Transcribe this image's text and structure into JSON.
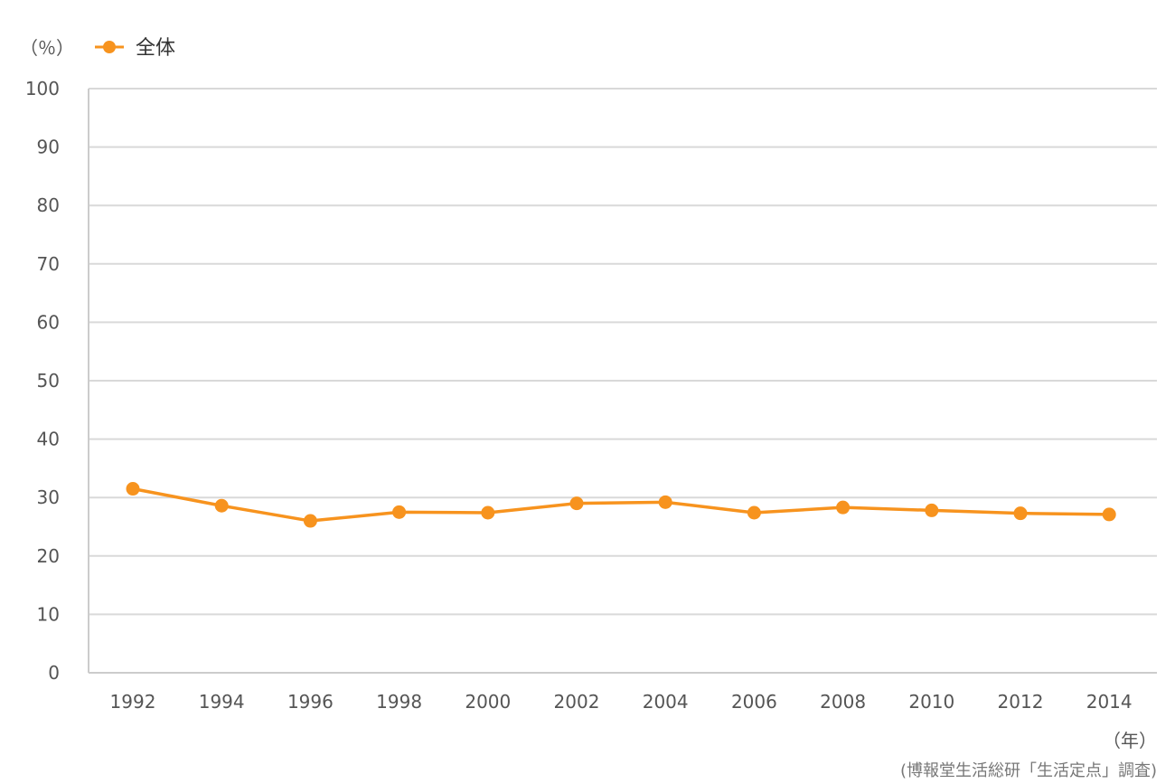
{
  "chart_data": {
    "type": "line",
    "y_unit": "（％）",
    "x_unit": "（年）",
    "source": "(博報堂生活総研「生活定点」調査)",
    "x": [
      "1992",
      "1994",
      "1996",
      "1998",
      "2000",
      "2002",
      "2004",
      "2006",
      "2008",
      "2010",
      "2012",
      "2014"
    ],
    "series": [
      {
        "name": "全体",
        "values": [
          31.5,
          28.6,
          26.0,
          27.5,
          27.4,
          29.0,
          29.2,
          27.4,
          28.3,
          27.8,
          27.3,
          27.1
        ],
        "color": "#F7931E"
      }
    ],
    "ylim": [
      0,
      100
    ],
    "yticks": [
      "0",
      "10",
      "20",
      "30",
      "40",
      "50",
      "60",
      "70",
      "80",
      "90",
      "100"
    ],
    "grid": true,
    "legend_position": "top-left"
  }
}
